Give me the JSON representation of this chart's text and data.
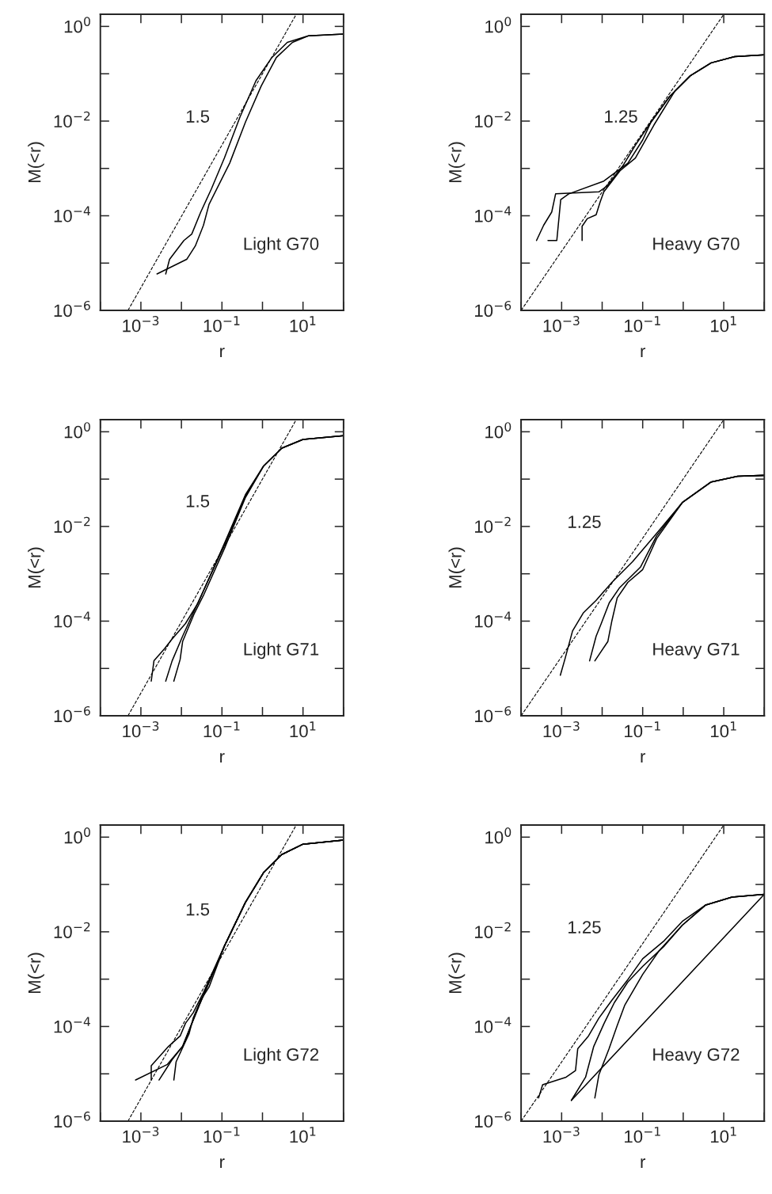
{
  "chart_data": [
    {
      "type": "line",
      "xlabel": "r",
      "ylabel": "M(<r)",
      "log": "xy",
      "xlim": [
        0.0001,
        100
      ],
      "ylim": [
        1e-06,
        1.8
      ],
      "xticks": [
        {
          "value": 0.0001,
          "label": null
        },
        {
          "value": 0.001,
          "label": "10$^{−3}$"
        },
        {
          "value": 0.01,
          "label": null
        },
        {
          "value": 0.1,
          "label": "10$^{−1}$"
        },
        {
          "value": 1,
          "label": null
        },
        {
          "value": 10,
          "label": "10$^{1}$"
        },
        {
          "value": 100,
          "label": null
        }
      ],
      "yticks": [
        {
          "value": 1e-06,
          "label": "10$^{−6}$"
        },
        {
          "value": 1e-05,
          "label": null
        },
        {
          "value": 0.0001,
          "label": "10$^{−4}$"
        },
        {
          "value": 0.001,
          "label": null
        },
        {
          "value": 0.01,
          "label": "10$^{−2}$"
        },
        {
          "value": 0.1,
          "label": null
        },
        {
          "value": 1,
          "label": "10$^{0}$"
        }
      ],
      "series": [
        {
          "color": "#000000",
          "line_style": "dashed",
          "x": [
            0.00048,
            6.8
          ],
          "values": [
            1e-06,
            1.8
          ]
        },
        {
          "color": "#000000",
          "x": [
            0.0041,
            0.0051,
            0.0115,
            0.018,
            0.03,
            0.055,
            0.115,
            0.28,
            0.69,
            1.7,
            4.1,
            13.5,
            100
          ],
          "values": [
            5.9e-06,
            1.2e-05,
            3e-05,
            4.1e-05,
            0.00012,
            0.00037,
            0.00166,
            0.0123,
            0.071,
            0.22,
            0.46,
            0.63,
            0.69
          ]
        },
        {
          "color": "#000000",
          "x": [
            0.0025,
            0.0135,
            0.022,
            0.035,
            0.048,
            0.155,
            0.38,
            0.93,
            2.2,
            5.5,
            13.5,
            100
          ],
          "values": [
            5.9e-06,
            1.2e-05,
            2.3e-05,
            6.3e-05,
            0.000174,
            0.00129,
            0.0095,
            0.055,
            0.22,
            0.46,
            0.63,
            0.69
          ]
        }
      ],
      "annotations": [
        "1.5",
        "Light G70"
      ]
    },
    {
      "type": "line",
      "xlabel": "r",
      "ylabel": "M(<r)",
      "log": "xy",
      "xlim": [
        0.0001,
        100
      ],
      "ylim": [
        1e-06,
        1.8
      ],
      "xticks": [
        {
          "value": 0.0001,
          "label": null
        },
        {
          "value": 0.001,
          "label": "10$^{−3}$"
        },
        {
          "value": 0.01,
          "label": null
        },
        {
          "value": 0.1,
          "label": "10$^{−1}$"
        },
        {
          "value": 1,
          "label": null
        },
        {
          "value": 10,
          "label": "10$^{1}$"
        },
        {
          "value": 100,
          "label": null
        }
      ],
      "yticks": [
        {
          "value": 1e-06,
          "label": "10$^{−6}$"
        },
        {
          "value": 1e-05,
          "label": null
        },
        {
          "value": 0.0001,
          "label": "10$^{−4}$"
        },
        {
          "value": 0.001,
          "label": null
        },
        {
          "value": 0.01,
          "label": "10$^{−2}$"
        },
        {
          "value": 0.1,
          "label": null
        },
        {
          "value": 1,
          "label": "10$^{0}$"
        }
      ],
      "series": [
        {
          "color": "#000000",
          "line_style": "dashed",
          "x": [
            0.0001,
            10
          ],
          "values": [
            1e-06,
            1.8
          ]
        },
        {
          "color": "#000000",
          "x": [
            0.00024,
            0.00036,
            0.00057,
            0.00071,
            0.0083,
            0.013,
            0.032,
            0.066,
            0.16,
            0.46,
            1.5,
            4.9,
            18.6,
            100
          ],
          "values": [
            3e-05,
            6.3e-05,
            0.00012,
            0.00029,
            0.00032,
            0.00042,
            0.00112,
            0.0031,
            0.0095,
            0.033,
            0.091,
            0.17,
            0.23,
            0.25
          ]
        },
        {
          "color": "#000000",
          "x": [
            0.00046,
            0.00076,
            0.00095,
            0.0015,
            0.011,
            0.043,
            0.1,
            0.16,
            0.46,
            1.5,
            4.9,
            18.6,
            100
          ],
          "values": [
            3e-05,
            3e-05,
            0.00022,
            0.00029,
            0.00054,
            0.00129,
            0.004,
            0.0095,
            0.033,
            0.091,
            0.17,
            0.23,
            0.25
          ]
        },
        {
          "color": "#000000",
          "x": [
            0.0032,
            0.0032,
            0.0043,
            0.0071,
            0.0089,
            0.011,
            0.0275,
            0.066,
            0.19,
            0.62,
            1.5,
            4.9,
            18.6,
            100
          ],
          "values": [
            3e-05,
            6e-05,
            8.7e-05,
            0.000105,
            0.000195,
            0.00032,
            0.00089,
            0.00166,
            0.0083,
            0.043,
            0.091,
            0.17,
            0.23,
            0.25
          ]
        }
      ],
      "annotations": [
        "1.25",
        "Heavy G70"
      ]
    },
    {
      "type": "line",
      "xlabel": "r",
      "ylabel": "M(<r)",
      "log": "xy",
      "xlim": [
        0.0001,
        100
      ],
      "ylim": [
        1e-06,
        1.8
      ],
      "xticks": [
        {
          "value": 0.0001,
          "label": null
        },
        {
          "value": 0.001,
          "label": "10$^{−3}$"
        },
        {
          "value": 0.01,
          "label": null
        },
        {
          "value": 0.1,
          "label": "10$^{−1}$"
        },
        {
          "value": 1,
          "label": null
        },
        {
          "value": 10,
          "label": "10$^{1}$"
        },
        {
          "value": 100,
          "label": null
        }
      ],
      "yticks": [
        {
          "value": 1e-06,
          "label": "10$^{−6}$"
        },
        {
          "value": 1e-05,
          "label": null
        },
        {
          "value": 0.0001,
          "label": "10$^{−4}$"
        },
        {
          "value": 0.001,
          "label": null
        },
        {
          "value": 0.01,
          "label": "10$^{−2}$"
        },
        {
          "value": 0.1,
          "label": null
        },
        {
          "value": 1,
          "label": "10$^{0}$"
        }
      ],
      "series": [
        {
          "color": "#000000",
          "line_style": "dashed",
          "x": [
            0.00048,
            6.8
          ],
          "values": [
            1e-06,
            1.8
          ]
        },
        {
          "color": "#000000",
          "x": [
            0.0018,
            0.0021,
            0.0038,
            0.0059,
            0.0126,
            0.026,
            0.115,
            0.38,
            1.07,
            3.0,
            10,
            100
          ],
          "values": [
            5.4e-06,
            1.45e-05,
            2.6e-05,
            4.2e-05,
            8.9e-05,
            0.000245,
            0.0044,
            0.047,
            0.19,
            0.45,
            0.69,
            0.83
          ]
        },
        {
          "color": "#000000",
          "x": [
            0.0065,
            0.0093,
            0.0107,
            0.021,
            0.035,
            0.115,
            0.38,
            1.07,
            3.0,
            10,
            100
          ],
          "values": [
            5.4e-06,
            1.55e-05,
            3.7e-05,
            0.000148,
            0.00035,
            0.0034,
            0.041,
            0.19,
            0.45,
            0.69,
            0.83
          ]
        },
        {
          "color": "#000000",
          "x": [
            0.0041,
            0.0059,
            0.0107,
            0.0195,
            0.041,
            0.115,
            0.38,
            1.07,
            3.0,
            10,
            100
          ],
          "values": [
            5.4e-06,
            1.45e-05,
            4.8e-05,
            0.000148,
            0.00059,
            0.004,
            0.044,
            0.19,
            0.45,
            0.69,
            0.83
          ]
        }
      ],
      "annotations": [
        "1.5",
        "Light G71"
      ]
    },
    {
      "type": "line",
      "xlabel": "r",
      "ylabel": "M(<r)",
      "log": "xy",
      "xlim": [
        0.0001,
        100
      ],
      "ylim": [
        1e-06,
        1.8
      ],
      "xticks": [
        {
          "value": 0.0001,
          "label": null
        },
        {
          "value": 0.001,
          "label": "10$^{−3}$"
        },
        {
          "value": 0.01,
          "label": null
        },
        {
          "value": 0.1,
          "label": "10$^{−1}$"
        },
        {
          "value": 1,
          "label": null
        },
        {
          "value": 10,
          "label": "10$^{1}$"
        },
        {
          "value": 100,
          "label": null
        }
      ],
      "yticks": [
        {
          "value": 1e-06,
          "label": "10$^{−6}$"
        },
        {
          "value": 1e-05,
          "label": null
        },
        {
          "value": 0.0001,
          "label": "10$^{−4}$"
        },
        {
          "value": 0.001,
          "label": null
        },
        {
          "value": 0.01,
          "label": "10$^{−2}$"
        },
        {
          "value": 0.1,
          "label": null
        },
        {
          "value": 1,
          "label": "10$^{0}$"
        }
      ],
      "series": [
        {
          "color": "#000000",
          "line_style": "dashed",
          "x": [
            0.0001,
            10
          ],
          "values": [
            1e-06,
            1.8
          ]
        },
        {
          "color": "#000000",
          "x": [
            0.00093,
            0.0012,
            0.00186,
            0.0034,
            0.0071,
            0.0174,
            0.056,
            0.22,
            0.95,
            4.9,
            22,
            100
          ],
          "values": [
            7.2e-06,
            1.55e-05,
            6.2e-05,
            0.000148,
            0.000275,
            0.00066,
            0.0018,
            0.0071,
            0.032,
            0.087,
            0.115,
            0.12
          ]
        },
        {
          "color": "#000000",
          "x": [
            0.0049,
            0.0071,
            0.0095,
            0.015,
            0.027,
            0.089,
            0.22,
            0.95,
            4.9,
            22,
            100
          ],
          "values": [
            1.45e-05,
            4.8e-05,
            8.9e-05,
            0.000245,
            0.00051,
            0.0014,
            0.0063,
            0.032,
            0.087,
            0.115,
            0.12
          ]
        },
        {
          "color": "#000000",
          "x": [
            0.0066,
            0.0138,
            0.0174,
            0.0235,
            0.043,
            0.1,
            0.22,
            0.95,
            4.9,
            22,
            100
          ],
          "values": [
            1.45e-05,
            3.7e-05,
            0.000102,
            0.00031,
            0.00066,
            0.00123,
            0.0055,
            0.032,
            0.087,
            0.115,
            0.12
          ]
        }
      ],
      "annotations": [
        "1.25",
        "Heavy G71"
      ]
    },
    {
      "type": "line",
      "xlabel": "r",
      "ylabel": "M(<r)",
      "log": "xy",
      "xlim": [
        0.0001,
        100
      ],
      "ylim": [
        1e-06,
        1.8
      ],
      "xticks": [
        {
          "value": 0.0001,
          "label": null
        },
        {
          "value": 0.001,
          "label": "10$^{−3}$"
        },
        {
          "value": 0.01,
          "label": null
        },
        {
          "value": 0.1,
          "label": "10$^{−1}$"
        },
        {
          "value": 1,
          "label": null
        },
        {
          "value": 10,
          "label": "10$^{1}$"
        },
        {
          "value": 100,
          "label": null
        }
      ],
      "yticks": [
        {
          "value": 1e-06,
          "label": "10$^{−6}$"
        },
        {
          "value": 1e-05,
          "label": null
        },
        {
          "value": 0.0001,
          "label": "10$^{−4}$"
        },
        {
          "value": 0.001,
          "label": null
        },
        {
          "value": 0.01,
          "label": "10$^{−2}$"
        },
        {
          "value": 0.1,
          "label": null
        },
        {
          "value": 1,
          "label": "10$^{0}$"
        }
      ],
      "series": [
        {
          "color": "#000000",
          "line_style": "dashed",
          "x": [
            0.00048,
            6.8
          ],
          "values": [
            1e-06,
            1.8
          ]
        },
        {
          "color": "#000000",
          "x": [
            0.00074,
            0.0045,
            0.0107,
            0.026,
            0.115,
            0.38,
            1.07,
            3.0,
            10,
            100
          ],
          "values": [
            7.4e-06,
            1.58e-05,
            3.8e-05,
            0.00025,
            0.005,
            0.042,
            0.18,
            0.43,
            0.71,
            0.87
          ]
        },
        {
          "color": "#000000",
          "x": [
            0.0018,
            0.0018,
            0.0048,
            0.0093,
            0.0126,
            0.0195,
            0.035,
            0.115,
            0.38,
            1.07,
            3.0,
            10,
            100
          ],
          "values": [
            7.4e-06,
            1.48e-05,
            3.8e-05,
            6.3e-05,
            0.000117,
            0.000195,
            0.00052,
            0.005,
            0.042,
            0.18,
            0.43,
            0.71,
            0.87
          ]
        },
        {
          "color": "#000000",
          "x": [
            0.0065,
            0.0074,
            0.0155,
            0.0195,
            0.03,
            0.048,
            0.115,
            0.38,
            1.07,
            3.0,
            10,
            100
          ],
          "values": [
            7.4e-06,
            1.8e-05,
            7.1e-05,
            0.00015,
            0.00036,
            0.00068,
            0.005,
            0.042,
            0.18,
            0.43,
            0.71,
            0.87
          ]
        },
        {
          "color": "#000000",
          "x": [
            0.0028,
            0.0059,
            0.0107,
            0.026,
            0.115,
            0.38,
            1.07,
            3.0,
            10,
            100
          ],
          "values": [
            7.4e-06,
            2e-05,
            3.8e-05,
            0.00025,
            0.005,
            0.042,
            0.18,
            0.43,
            0.71,
            0.87
          ]
        }
      ],
      "annotations": [
        "1.5",
        "Light G72"
      ]
    },
    {
      "type": "line",
      "xlabel": "r",
      "ylabel": "M(<r)",
      "log": "xy",
      "xlim": [
        0.0001,
        100
      ],
      "ylim": [
        1e-06,
        1.8
      ],
      "xticks": [
        {
          "value": 0.0001,
          "label": null
        },
        {
          "value": 0.001,
          "label": "10$^{−3}$"
        },
        {
          "value": 0.01,
          "label": null
        },
        {
          "value": 0.1,
          "label": "10$^{−1}$"
        },
        {
          "value": 1,
          "label": null
        },
        {
          "value": 10,
          "label": "10$^{1}$"
        },
        {
          "value": 100,
          "label": null
        }
      ],
      "yticks": [
        {
          "value": 1e-06,
          "label": "10$^{−6}$"
        },
        {
          "value": 1e-05,
          "label": null
        },
        {
          "value": 0.0001,
          "label": "10$^{−4}$"
        },
        {
          "value": 0.001,
          "label": null
        },
        {
          "value": 0.01,
          "label": "10$^{−2}$"
        },
        {
          "value": 0.1,
          "label": null
        },
        {
          "value": 1,
          "label": "10$^{0}$"
        }
      ],
      "series": [
        {
          "color": "#000000",
          "line_style": "dashed",
          "x": [
            0.0001,
            10
          ],
          "values": [
            1e-06,
            1.8
          ]
        },
        {
          "color": "#000000",
          "x": [
            0.00174,
            100
          ],
          "values": [
            2.75e-06,
            0.062
          ]
        },
        {
          "color": "#000000",
          "x": [
            0.00027,
            0.00034,
            0.00129,
            0.0022,
            0.0025,
            0.0046,
            0.0083,
            0.0174,
            0.043,
            0.1,
            0.34,
            0.95,
            3.6,
            16,
            100
          ],
          "values": [
            3.1e-06,
            5.9e-06,
            8.5e-06,
            1.17e-05,
            3.4e-05,
            6.3e-05,
            0.00015,
            0.00036,
            0.00098,
            0.0027,
            0.0065,
            0.0166,
            0.037,
            0.054,
            0.062
          ]
        },
        {
          "color": "#000000",
          "x": [
            0.00174,
            0.0039,
            0.0062,
            0.0112,
            0.02,
            0.043,
            0.1,
            0.34,
            0.95,
            3.6,
            16,
            100
          ],
          "values": [
            2.75e-06,
            8.5e-06,
            3.8e-05,
            0.000117,
            0.00032,
            0.00087,
            0.00186,
            0.005,
            0.0138,
            0.037,
            0.054,
            0.062
          ]
        },
        {
          "color": "#000000",
          "x": [
            0.0066,
            0.0083,
            0.0148,
            0.0235,
            0.036,
            0.1,
            0.25,
            0.95,
            3.6,
            16,
            100
          ],
          "values": [
            3.1e-06,
            9.5e-06,
            3.4e-05,
            0.000105,
            0.00028,
            0.00126,
            0.0039,
            0.0138,
            0.037,
            0.054,
            0.062
          ]
        }
      ],
      "annotations": [
        "1.25",
        "Heavy G72"
      ]
    }
  ]
}
